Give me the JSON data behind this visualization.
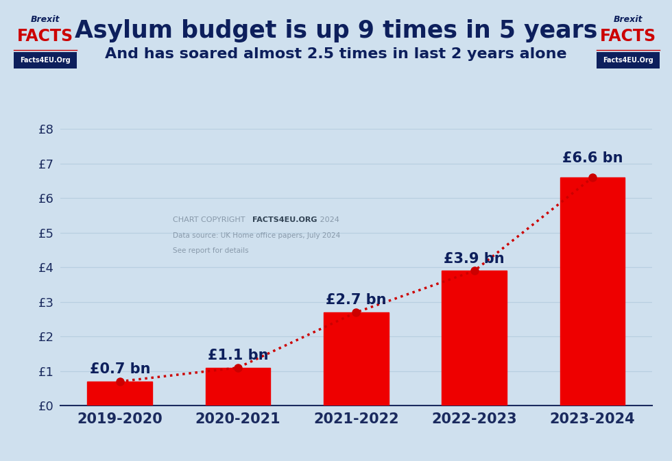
{
  "title": "Asylum budget is up 9 times in 5 years",
  "subtitle": "And has soared almost 2.5 times in last 2 years alone",
  "categories": [
    "2019-2020",
    "2020-2021",
    "2021-2022",
    "2022-2023",
    "2023-2024"
  ],
  "values": [
    0.7,
    1.1,
    2.7,
    3.9,
    6.6
  ],
  "labels": [
    "£0.7 bn",
    "£1.1 bn",
    "£2.7 bn",
    "£3.9 bn",
    "£6.6 bn"
  ],
  "bar_color": "#ee0000",
  "dot_line_color": "#cc0000",
  "background_color": "#cfe0ee",
  "title_color": "#0d1f5c",
  "subtitle_color": "#0d1f5c",
  "axis_color": "#1a2a5e",
  "label_color": "#0d1f5c",
  "ylim": [
    0,
    8
  ],
  "yticks": [
    0,
    1,
    2,
    3,
    4,
    5,
    6,
    7,
    8
  ],
  "ytick_labels": [
    "£0",
    "£1",
    "£2",
    "£3",
    "£4",
    "£5",
    "£6",
    "£7",
    "£8"
  ],
  "title_fontsize": 25,
  "subtitle_fontsize": 16,
  "bar_label_fontsize": 15,
  "tick_fontsize": 13,
  "cat_fontsize": 15,
  "logo_border_color": "#cc0000",
  "logo_facts_color": "#cc0000",
  "logo_brexit_color": "#0d1f5c",
  "logo_banner_color": "#0d1f5c",
  "logo_url_color": "#ffffff",
  "copyright_normal_color": "#8899aa",
  "copyright_bold_color": "#334455",
  "grid_color": "#b8cfe0"
}
